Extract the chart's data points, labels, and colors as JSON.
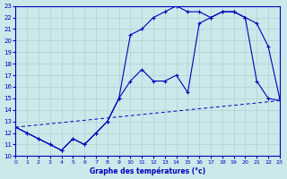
{
  "xlabel": "Graphe des températures (°c)",
  "xlim": [
    0,
    23
  ],
  "ylim": [
    10,
    23
  ],
  "yticks": [
    10,
    11,
    12,
    13,
    14,
    15,
    16,
    17,
    18,
    19,
    20,
    21,
    22,
    23
  ],
  "xticks": [
    0,
    1,
    2,
    3,
    4,
    5,
    6,
    7,
    8,
    9,
    10,
    11,
    12,
    13,
    14,
    15,
    16,
    17,
    18,
    19,
    20,
    21,
    22,
    23
  ],
  "bg_color": "#cce8ea",
  "grid_color": "#b0d0d2",
  "line_color": "#0000bb",
  "line1_x": [
    0,
    1,
    2,
    3,
    4,
    5,
    6,
    7,
    8,
    9,
    10,
    11,
    12,
    13,
    14,
    15,
    16,
    17,
    18,
    19,
    20,
    21,
    22,
    23
  ],
  "line1_y": [
    12.5,
    12.0,
    11.5,
    11.0,
    10.5,
    11.5,
    11.0,
    12.0,
    13.0,
    15.0,
    16.5,
    17.5,
    16.5,
    16.5,
    17.0,
    15.5,
    21.5,
    22.0,
    22.5,
    22.5,
    22.0,
    21.5,
    19.5,
    15.0
  ],
  "line2_x": [
    0,
    1,
    2,
    3,
    4,
    5,
    6,
    7,
    8,
    9,
    10,
    11,
    12,
    13,
    14,
    15,
    16,
    17,
    18,
    19,
    20,
    21,
    22,
    23
  ],
  "line2_y": [
    12.5,
    12.0,
    11.5,
    11.0,
    10.5,
    11.5,
    11.0,
    12.0,
    13.0,
    15.0,
    20.5,
    21.0,
    22.0,
    22.5,
    23.0,
    22.5,
    22.5,
    22.0,
    22.5,
    22.5,
    22.0,
    16.5,
    15.0,
    14.8
  ],
  "line3_x": [
    0,
    1,
    2,
    3,
    4,
    5,
    6,
    7,
    8,
    9,
    10,
    11,
    12,
    13,
    14,
    15,
    16,
    17,
    18,
    19,
    20,
    21,
    22,
    23
  ],
  "line3_y": [
    12.5,
    12.6,
    12.7,
    12.8,
    12.9,
    13.0,
    13.1,
    13.2,
    13.3,
    13.4,
    13.5,
    13.6,
    13.7,
    13.8,
    13.9,
    14.0,
    14.1,
    14.2,
    14.3,
    14.4,
    14.5,
    14.6,
    14.7,
    14.8
  ]
}
